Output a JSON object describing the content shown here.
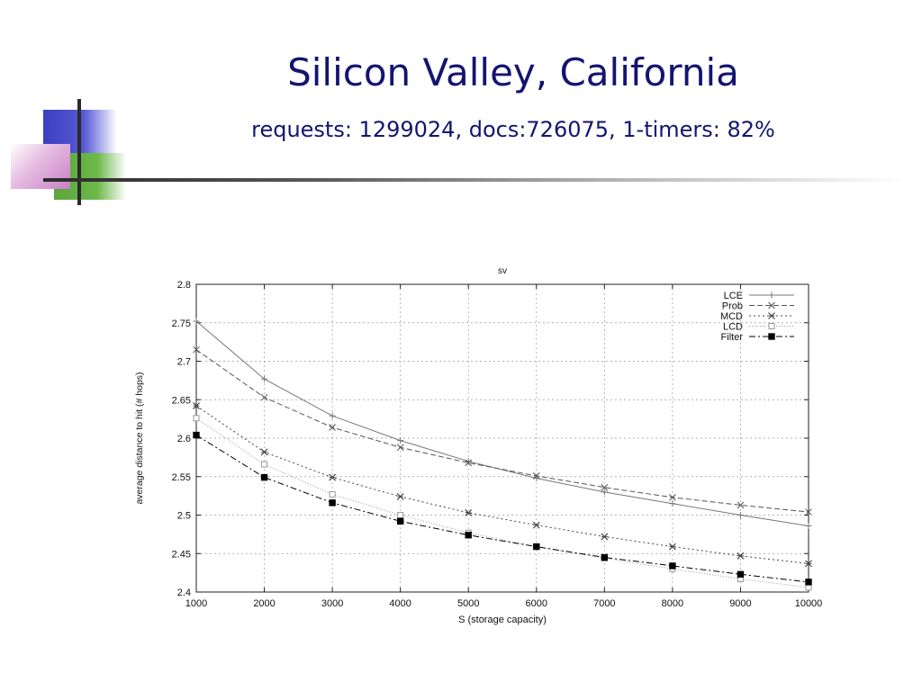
{
  "slide": {
    "title": "Silicon Valley, California",
    "subtitle": "requests: 1299024, docs:726075, 1-timers: 82%"
  },
  "chart_data": {
    "type": "line",
    "title": "sv",
    "xlabel": "S (storage capacity)",
    "ylabel": "average distance to hit (# hops)",
    "xlim": [
      1000,
      10000
    ],
    "ylim": [
      2.4,
      2.8
    ],
    "xticks": [
      "1000",
      "2000",
      "3000",
      "4000",
      "5000",
      "6000",
      "7000",
      "8000",
      "9000",
      "10000"
    ],
    "yticks": [
      "2.4",
      "2.45",
      "2.5",
      "2.55",
      "2.6",
      "2.65",
      "2.7",
      "2.75",
      "2.8"
    ],
    "grid": true,
    "legend_position": "top-right",
    "x": [
      1000,
      2000,
      3000,
      4000,
      5000,
      6000,
      7000,
      8000,
      9000,
      10000
    ],
    "series": [
      {
        "name": "LCE",
        "marker": "plus",
        "dash": "solid",
        "color": "#777777",
        "values": [
          2.752,
          2.677,
          2.629,
          2.597,
          2.57,
          2.548,
          2.53,
          2.515,
          2.5,
          2.486
        ]
      },
      {
        "name": "Prob",
        "marker": "cross",
        "dash": "dashed",
        "color": "#555555",
        "values": [
          2.715,
          2.653,
          2.614,
          2.588,
          2.568,
          2.551,
          2.536,
          2.523,
          2.513,
          2.504
        ]
      },
      {
        "name": "MCD",
        "marker": "star",
        "dash": "dotted",
        "color": "#444444",
        "values": [
          2.642,
          2.582,
          2.549,
          2.524,
          2.503,
          2.487,
          2.472,
          2.459,
          2.447,
          2.437
        ]
      },
      {
        "name": "LCD",
        "marker": "open-square",
        "dash": "dotted2",
        "color": "#999999",
        "values": [
          2.626,
          2.566,
          2.527,
          2.5,
          2.477,
          2.459,
          2.444,
          2.43,
          2.417,
          2.406
        ]
      },
      {
        "name": "Filter",
        "marker": "filled-square",
        "dash": "dashdot",
        "color": "#000000",
        "values": [
          2.604,
          2.549,
          2.516,
          2.492,
          2.474,
          2.459,
          2.445,
          2.434,
          2.423,
          2.413
        ]
      }
    ]
  }
}
